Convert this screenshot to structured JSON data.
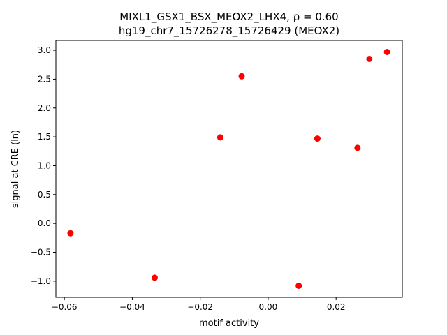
{
  "chart_data": {
    "type": "scatter",
    "title_line1": "MIXL1_GSX1_BSX_MEOX2_LHX4, ρ = 0.60",
    "title_line2": "hg19_chr7_15726278_15726429 (MEOX2)",
    "xlabel": "motif activity",
    "ylabel": "signal at CRE (ln)",
    "xlim": [
      -0.0625,
      0.0395
    ],
    "ylim": [
      -1.28,
      3.17
    ],
    "xticks": [
      -0.06,
      -0.04,
      -0.02,
      0.0,
      0.02
    ],
    "xtick_labels": [
      "−0.06",
      "−0.04",
      "−0.02",
      "0.00",
      "0.02"
    ],
    "yticks": [
      -1.0,
      -0.5,
      0.0,
      0.5,
      1.0,
      1.5,
      2.0,
      2.5,
      3.0
    ],
    "ytick_labels": [
      "−1.0",
      "−0.5",
      "0.0",
      "0.5",
      "1.0",
      "1.5",
      "2.0",
      "2.5",
      "3.0"
    ],
    "grid": false,
    "marker_color": "#ff0000",
    "points": [
      {
        "x": -0.0582,
        "y": -0.17
      },
      {
        "x": -0.0334,
        "y": -0.94
      },
      {
        "x": -0.0141,
        "y": 1.49
      },
      {
        "x": -0.0078,
        "y": 2.55
      },
      {
        "x": 0.009,
        "y": -1.08
      },
      {
        "x": 0.0145,
        "y": 1.47
      },
      {
        "x": 0.0263,
        "y": 1.31
      },
      {
        "x": 0.0298,
        "y": 2.85
      },
      {
        "x": 0.035,
        "y": 2.97
      }
    ]
  }
}
